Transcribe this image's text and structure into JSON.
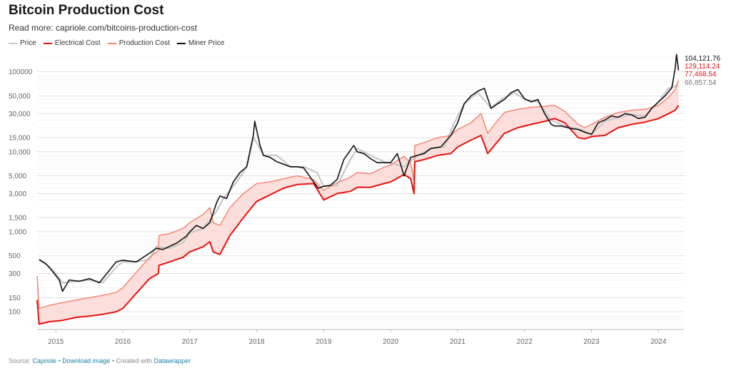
{
  "header": {
    "title": "Bitcoin Production Cost",
    "subtitle": "Read more: capriole.com/bitcoins-production-cost"
  },
  "footer": {
    "source_prefix": "Source:",
    "source_link": "Capriole",
    "separator1": "•",
    "download_link": "Download image",
    "separator2": "•",
    "created_prefix": "Created with",
    "tool_link": "Datawrapper"
  },
  "colors": {
    "price": "#c8c8c8",
    "electrical": "#e8110f",
    "production": "#f2806c",
    "miner": "#111111",
    "band": "#fbd4d0"
  },
  "chart_data": {
    "type": "line",
    "title": "Bitcoin Production Cost",
    "yscale": "log",
    "ylim": [
      60,
      180000
    ],
    "xlim": [
      2014.72,
      2024.38
    ],
    "y_ticks": [
      100,
      150,
      300,
      500,
      1000,
      1500,
      3000,
      5000,
      10000,
      15000,
      30000,
      50000,
      100000
    ],
    "y_tick_labels": [
      "100",
      "150",
      "300",
      "500",
      "1,000",
      "1,500",
      "3,000",
      "5,000",
      "10,000",
      "15,000",
      "30,000",
      "50,000",
      "100000"
    ],
    "x_ticks": [
      2015,
      2016,
      2017,
      2018,
      2019,
      2020,
      2021,
      2022,
      2023,
      2024
    ],
    "x_tick_labels": [
      "2015",
      "2016",
      "2017",
      "2018",
      "2019",
      "2020",
      "2021",
      "2022",
      "2023",
      "2024"
    ],
    "legend_position": "top-left",
    "series": [
      {
        "name": "Price",
        "x": [
          2014.75,
          2014.9,
          2015.0,
          2015.1,
          2015.3,
          2015.5,
          2015.7,
          2015.9,
          2016.0,
          2016.2,
          2016.4,
          2016.5,
          2016.7,
          2016.9,
          2017.0,
          2017.2,
          2017.4,
          2017.5,
          2017.7,
          2017.85,
          2017.95,
          2018.0,
          2018.1,
          2018.3,
          2018.5,
          2018.7,
          2018.9,
          2019.0,
          2019.2,
          2019.4,
          2019.5,
          2019.7,
          2019.9,
          2020.0,
          2020.2,
          2020.4,
          2020.6,
          2020.8,
          2020.95,
          2021.1,
          2021.3,
          2021.5,
          2021.65,
          2021.85,
          2022.0,
          2022.2,
          2022.4,
          2022.6,
          2022.85,
          2023.0,
          2023.2,
          2023.4,
          2023.6,
          2023.8,
          2024.0,
          2024.15,
          2024.25,
          2024.3
        ],
        "values": [
          440,
          370,
          300,
          230,
          240,
          250,
          230,
          360,
          420,
          420,
          450,
          650,
          620,
          730,
          960,
          1100,
          1800,
          2600,
          4200,
          6500,
          15000,
          13000,
          9000,
          9000,
          6500,
          6500,
          5500,
          3700,
          3800,
          8000,
          11000,
          9000,
          7500,
          7200,
          6500,
          9000,
          11000,
          11500,
          23000,
          40000,
          55000,
          35000,
          45000,
          55000,
          45000,
          42000,
          25000,
          21000,
          19000,
          16500,
          24000,
          27000,
          29000,
          28000,
          42000,
          62000,
          66000,
          66858
        ]
      },
      {
        "name": "Electrical Cost",
        "x": [
          2014.72,
          2014.75,
          2014.9,
          2015.1,
          2015.3,
          2015.5,
          2015.7,
          2015.9,
          2016.0,
          2016.2,
          2016.4,
          2016.53,
          2016.54,
          2016.7,
          2016.9,
          2017.0,
          2017.2,
          2017.3,
          2017.35,
          2017.45,
          2017.6,
          2017.8,
          2018.0,
          2018.2,
          2018.4,
          2018.6,
          2018.85,
          2019.0,
          2019.2,
          2019.4,
          2019.5,
          2019.7,
          2019.9,
          2020.0,
          2020.2,
          2020.3,
          2020.35,
          2020.36,
          2020.5,
          2020.7,
          2020.9,
          2021.0,
          2021.2,
          2021.35,
          2021.45,
          2021.55,
          2021.7,
          2021.9,
          2022.1,
          2022.3,
          2022.45,
          2022.6,
          2022.8,
          2022.9,
          2023.0,
          2023.2,
          2023.4,
          2023.6,
          2023.8,
          2024.0,
          2024.15,
          2024.25,
          2024.3
        ],
        "values": [
          140,
          70,
          75,
          78,
          85,
          88,
          93,
          100,
          110,
          170,
          260,
          300,
          380,
          420,
          480,
          560,
          650,
          750,
          560,
          520,
          900,
          1500,
          2400,
          2900,
          3500,
          3900,
          4000,
          2500,
          3000,
          3200,
          3600,
          3600,
          4000,
          4200,
          5200,
          4600,
          3000,
          7500,
          8000,
          9000,
          9500,
          11500,
          14000,
          16000,
          9500,
          12000,
          17000,
          20000,
          22000,
          24000,
          26000,
          23000,
          15000,
          14500,
          15500,
          16000,
          20000,
          22000,
          23500,
          26000,
          30000,
          33000,
          38000
        ]
      },
      {
        "name": "Production Cost",
        "x": [
          2014.72,
          2014.75,
          2014.9,
          2015.1,
          2015.3,
          2015.5,
          2015.7,
          2015.9,
          2016.0,
          2016.2,
          2016.4,
          2016.53,
          2016.54,
          2016.7,
          2016.9,
          2017.0,
          2017.2,
          2017.3,
          2017.35,
          2017.45,
          2017.6,
          2017.8,
          2018.0,
          2018.2,
          2018.4,
          2018.6,
          2018.85,
          2019.0,
          2019.2,
          2019.4,
          2019.5,
          2019.7,
          2019.9,
          2020.0,
          2020.2,
          2020.3,
          2020.35,
          2020.36,
          2020.5,
          2020.7,
          2020.9,
          2021.0,
          2021.2,
          2021.35,
          2021.45,
          2021.55,
          2021.7,
          2021.9,
          2022.1,
          2022.3,
          2022.45,
          2022.6,
          2022.8,
          2022.9,
          2023.0,
          2023.2,
          2023.4,
          2023.6,
          2023.8,
          2024.0,
          2024.15,
          2024.25,
          2024.3
        ],
        "values": [
          280,
          110,
          120,
          130,
          140,
          150,
          160,
          175,
          200,
          310,
          480,
          580,
          900,
          950,
          1100,
          1300,
          1650,
          2000,
          1300,
          1200,
          2000,
          3000,
          4000,
          4200,
          4600,
          5000,
          4500,
          3300,
          4100,
          4800,
          5500,
          5300,
          6400,
          6800,
          8800,
          7200,
          4500,
          12000,
          13000,
          15000,
          16000,
          19000,
          23000,
          30000,
          17000,
          22000,
          31000,
          34000,
          36000,
          37000,
          38000,
          32000,
          22000,
          20000,
          22000,
          27000,
          31000,
          33000,
          34000,
          38000,
          48000,
          60000,
          77469
        ]
      },
      {
        "name": "Miner Price",
        "x": [
          2014.75,
          2014.85,
          2014.95,
          2015.05,
          2015.1,
          2015.2,
          2015.35,
          2015.5,
          2015.65,
          2015.8,
          2015.9,
          2016.0,
          2016.2,
          2016.4,
          2016.5,
          2016.6,
          2016.8,
          2016.95,
          2017.0,
          2017.1,
          2017.2,
          2017.3,
          2017.4,
          2017.45,
          2017.55,
          2017.65,
          2017.75,
          2017.85,
          2017.95,
          2017.97,
          2018.05,
          2018.1,
          2018.2,
          2018.3,
          2018.4,
          2018.5,
          2018.6,
          2018.7,
          2018.85,
          2018.92,
          2019.0,
          2019.1,
          2019.2,
          2019.3,
          2019.45,
          2019.5,
          2019.6,
          2019.7,
          2019.8,
          2019.9,
          2020.0,
          2020.1,
          2020.2,
          2020.3,
          2020.4,
          2020.5,
          2020.6,
          2020.75,
          2020.9,
          2021.0,
          2021.1,
          2021.2,
          2021.3,
          2021.4,
          2021.5,
          2021.6,
          2021.7,
          2021.8,
          2021.9,
          2022.0,
          2022.1,
          2022.2,
          2022.3,
          2022.4,
          2022.45,
          2022.55,
          2022.7,
          2022.8,
          2022.9,
          2023.0,
          2023.1,
          2023.2,
          2023.3,
          2023.4,
          2023.5,
          2023.6,
          2023.7,
          2023.8,
          2023.9,
          2024.0,
          2024.1,
          2024.2,
          2024.25,
          2024.27,
          2024.3
        ],
        "values": [
          450,
          400,
          320,
          250,
          180,
          250,
          240,
          260,
          230,
          330,
          420,
          440,
          420,
          540,
          620,
          600,
          720,
          880,
          1000,
          1200,
          1100,
          1300,
          2300,
          2800,
          2600,
          4200,
          5500,
          6500,
          16000,
          24000,
          12000,
          9000,
          8500,
          7500,
          7000,
          6500,
          6500,
          6300,
          4200,
          3500,
          3700,
          3800,
          4500,
          8000,
          12000,
          10000,
          9500,
          8200,
          7300,
          7300,
          7300,
          9500,
          5000,
          8500,
          9000,
          9500,
          11000,
          11500,
          16000,
          23000,
          40000,
          50000,
          57000,
          62000,
          35000,
          40000,
          45000,
          55000,
          60000,
          46000,
          42000,
          45000,
          30000,
          22000,
          21000,
          21000,
          19500,
          19000,
          17500,
          16500,
          23000,
          25000,
          28000,
          27000,
          30000,
          29000,
          26000,
          27000,
          35000,
          42000,
          50000,
          63000,
          110000,
          165000,
          104122
        ]
      }
    ],
    "end_labels": [
      "104,121.76",
      "129,114.24",
      "77,468.54",
      "66,857.54"
    ]
  }
}
